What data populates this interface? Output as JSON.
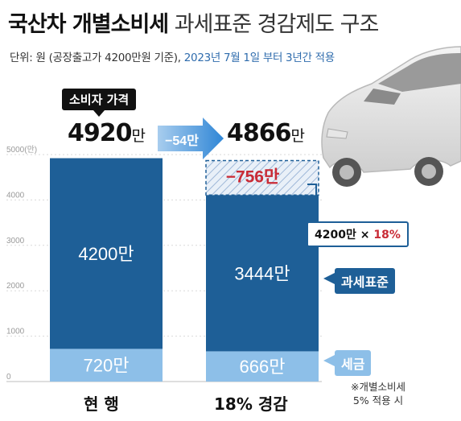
{
  "header": {
    "title_bold": "국산차 개별소비세",
    "title_normal": "과세표준 경감제도 구조",
    "subtitle_unit": "단위: 원 (공장출고가 4200만원 기준),",
    "subtitle_date": "2023년 7월 1일 부터 3년간 적용"
  },
  "annotations": {
    "consumer_price_label": "소비자 가격",
    "before_price": "4920",
    "after_price": "4866",
    "man_unit": "만",
    "diff_arrow": "−54만",
    "reduction": "−756만",
    "calc_base": "4200만",
    "calc_times": "×",
    "calc_pct": "18%",
    "tax_base_tag": "과세표준",
    "tax_tag": "세금",
    "note_line1": "※개별소비세",
    "note_line2": "5% 적용 시"
  },
  "colors": {
    "tax_base": "#1e5f97",
    "tax": "#8dbfe8",
    "reduction_text": "#c92b36",
    "hatch": "#9fb8d8",
    "date_text": "#2f6cad"
  },
  "chart_data": {
    "type": "bar",
    "stacked": true,
    "categories": [
      "현 행",
      "18% 경감"
    ],
    "ylabel": "",
    "ytick_top_label": "5000(만)",
    "yticks": [
      0,
      1000,
      2000,
      3000,
      4000,
      5000
    ],
    "ylim": [
      0,
      5000
    ],
    "series": [
      {
        "name": "세금",
        "values": [
          720,
          666
        ],
        "labels": [
          "720만",
          "666만"
        ]
      },
      {
        "name": "과세표준",
        "values": [
          4200,
          3444
        ],
        "labels": [
          "4200만",
          "3444만"
        ]
      },
      {
        "name": "",
        "values": [
          0,
          756
        ],
        "hatched": true
      }
    ],
    "totals": [
      4920,
      4866
    ]
  }
}
